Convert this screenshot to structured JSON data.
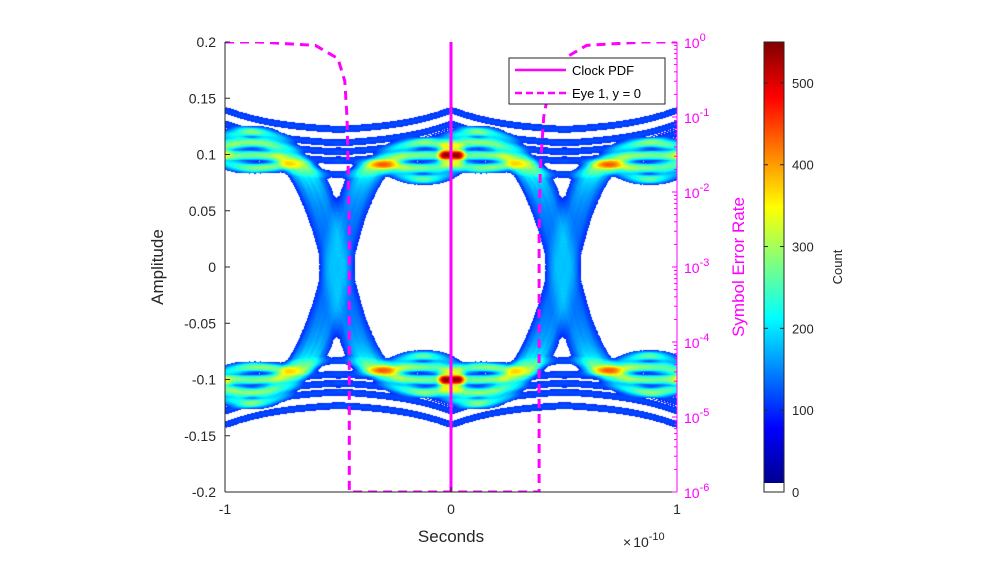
{
  "chart_data": {
    "type": "heatmap",
    "title": "",
    "xlabel": "Seconds",
    "x_exponent_prefix": "×",
    "x_exponent_base": "10",
    "x_exponent_power": "-10",
    "xlim": [
      -1,
      1
    ],
    "x_ticks": [
      "-1",
      "0",
      "1"
    ],
    "ylabel": "Amplitude",
    "ylim": [
      -0.2,
      0.2
    ],
    "y_ticks": [
      "0.2",
      "0.15",
      "0.1",
      "0.05",
      "0",
      "-0.05",
      "-0.1",
      "-0.15",
      "-0.2"
    ],
    "y_tick_values": [
      0.2,
      0.15,
      0.1,
      0.05,
      0,
      -0.05,
      -0.1,
      -0.15,
      -0.2
    ],
    "y_right_label": "Symbol Error Rate",
    "y_right_scale": "log",
    "y_right_lim": [
      1e-06,
      1
    ],
    "y_right_ticks": [
      {
        "base": "10",
        "exp": "0",
        "value": 1
      },
      {
        "base": "10",
        "exp": "-1",
        "value": 0.1
      },
      {
        "base": "10",
        "exp": "-2",
        "value": 0.01
      },
      {
        "base": "10",
        "exp": "-3",
        "value": 0.001
      },
      {
        "base": "10",
        "exp": "-4",
        "value": 0.0001
      },
      {
        "base": "10",
        "exp": "-5",
        "value": 1e-05
      },
      {
        "base": "10",
        "exp": "-6",
        "value": 1e-06
      }
    ],
    "colorbar": {
      "label": "Count",
      "lim": [
        0,
        550
      ],
      "ticks": [
        "0",
        "100",
        "200",
        "300",
        "400",
        "500"
      ],
      "tick_values": [
        0,
        100,
        200,
        300,
        400,
        500
      ],
      "colormap": "jet"
    },
    "eye": {
      "crossing_times": [
        -0.5,
        0.5
      ],
      "levels": [
        -0.1,
        0.1
      ],
      "crossing_amplitude": 0
    },
    "series": [
      {
        "name": "Clock PDF",
        "type": "line",
        "style": "solid",
        "color": "#ff00ff",
        "x": [
          0,
          0
        ],
        "y": [
          1e-06,
          1
        ]
      },
      {
        "name": "Eye 1, y = 0",
        "type": "line",
        "style": "dashed",
        "color": "#ff00ff",
        "x": [
          -1,
          -0.85,
          -0.6,
          -0.5,
          -0.47,
          -0.46,
          -0.455,
          -0.45,
          -0.45,
          0.39,
          0.39,
          0.395,
          0.41,
          0.44,
          0.5,
          0.6,
          0.85,
          1
        ],
        "y": [
          1,
          1,
          0.9,
          0.6,
          0.3,
          0.1,
          0.02,
          0.003,
          1e-06,
          1e-06,
          0.003,
          0.02,
          0.1,
          0.3,
          0.6,
          0.9,
          1,
          1
        ]
      }
    ],
    "legend": {
      "position": "top-right",
      "entries": [
        "Clock PDF",
        "Eye 1, y = 0"
      ]
    },
    "grid": false
  }
}
